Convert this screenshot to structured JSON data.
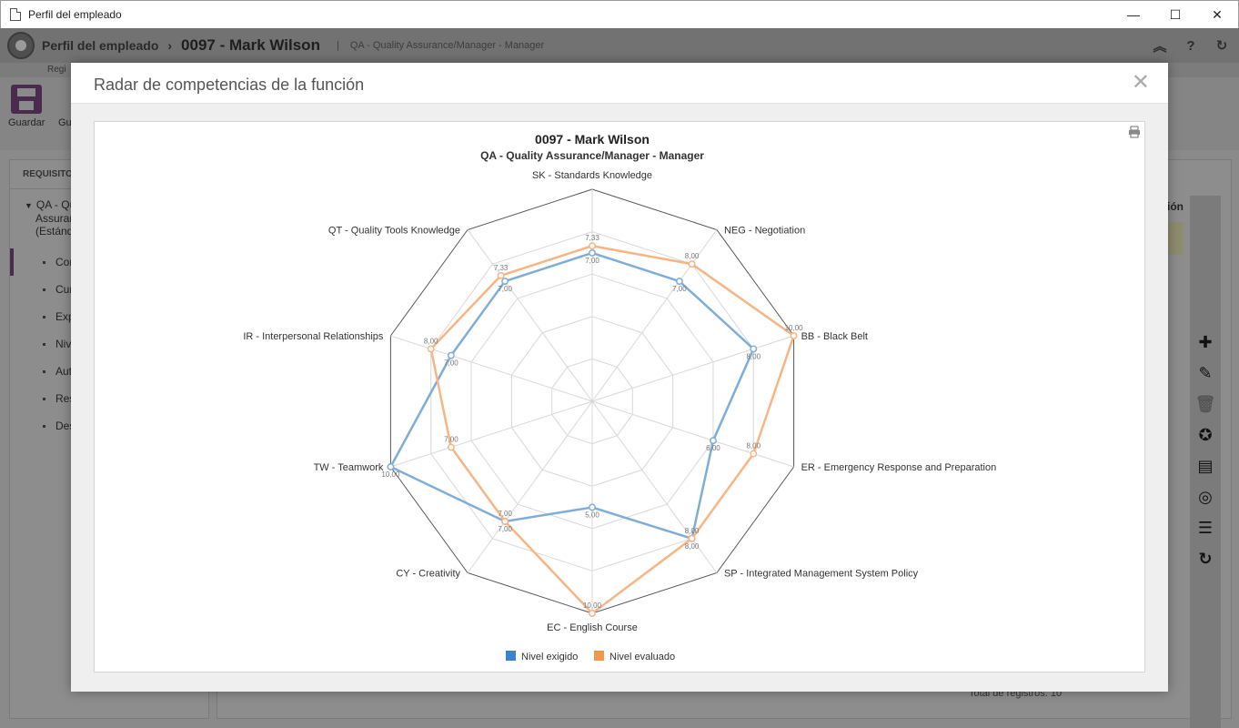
{
  "window": {
    "title": "Perfil del empleado",
    "controls": {
      "minimize": "—",
      "maximize": "☐",
      "close": "✕"
    }
  },
  "header": {
    "module": "Perfil del empleado",
    "separator": "›",
    "employee": "0097 - Mark Wilson",
    "pipe": "|",
    "role": "QA - Quality Assurance/Manager - Manager",
    "icons": [
      "collapse-icon",
      "help-icon",
      "refresh-icon"
    ]
  },
  "tabstrip": {
    "label": "Regi"
  },
  "toolbar": {
    "save_label": "Guardar",
    "save2_label": "Gu"
  },
  "left_panel": {
    "heading": "REQUISITO",
    "tree_root": [
      "QA - Qu",
      "Assurar",
      "(Estánd"
    ],
    "items": [
      "Cor",
      "Cur",
      "Exp",
      "Niv",
      "Aut",
      "Res",
      "Des"
    ]
  },
  "right_panel": {
    "column_header": "ación",
    "total": "Total de registros: 10"
  },
  "modal": {
    "title": "Radar de competencias de la función",
    "close": "✕"
  },
  "chart_data": {
    "type": "radar",
    "title": "0097 - Mark Wilson",
    "subtitle": "QA - Quality Assurance/Manager - Manager",
    "rmax": 10,
    "rings": 5,
    "categories": [
      "SK - Standards Knowledge",
      "NEG - Negotiation",
      "BB - Black Belt",
      "ER - Emergency Response and Preparation",
      "SP - Integrated Management System Policy",
      "EC - English Course",
      "CY - Creativity",
      "TW - Teamwork",
      "IR - Interpersonal Relationships",
      "QT - Quality Tools Knowledge"
    ],
    "series": [
      {
        "name": "Nivel exigido",
        "color": "#7eadd8",
        "legend_color": "#3b82d1",
        "values": [
          7.0,
          7.0,
          8.0,
          6.0,
          8.0,
          5.0,
          7.0,
          10.0,
          7.0,
          7.0
        ],
        "labels": [
          "7,00",
          "7,00",
          "8,00",
          "6,00",
          "8,00",
          "5,00",
          "7,00",
          "10,00",
          "7,00",
          "7,00"
        ]
      },
      {
        "name": "Nivel evaluado",
        "color": "#f8b483",
        "legend_color": "#f5964f",
        "values": [
          7.33,
          8.0,
          10.0,
          8.0,
          8.0,
          10.0,
          7.0,
          7.0,
          8.0,
          7.33
        ],
        "labels": [
          "7,33",
          "8,00",
          "10,00",
          "8,00",
          "8,00",
          "10,00",
          "7,00",
          "7,00",
          "8,00",
          "7,33"
        ]
      }
    ],
    "legend_position": "bottom"
  }
}
